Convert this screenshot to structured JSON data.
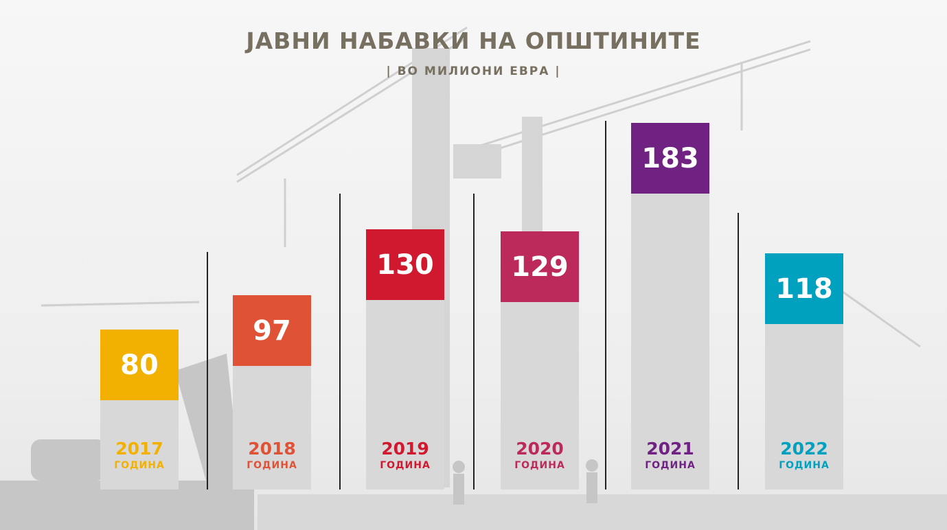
{
  "title": "ЈАВНИ НАБАВКИ НА ОПШТИНИТЕ",
  "subtitle": "| ВО МИЛИОНИ ЕВРА |",
  "chart_data": {
    "type": "bar",
    "categories": [
      "2017",
      "2018",
      "2019",
      "2020",
      "2021",
      "2022"
    ],
    "category_sublabel": "ГОДИНА",
    "values": [
      80,
      97,
      130,
      129,
      183,
      118
    ],
    "value_labels": [
      "80",
      "97",
      "130",
      "129",
      "183",
      "118"
    ],
    "colors": [
      "#f2b100",
      "#e05236",
      "#d0192f",
      "#bc2a5b",
      "#702283",
      "#00a0bf"
    ],
    "ylim": [
      0,
      200
    ]
  }
}
